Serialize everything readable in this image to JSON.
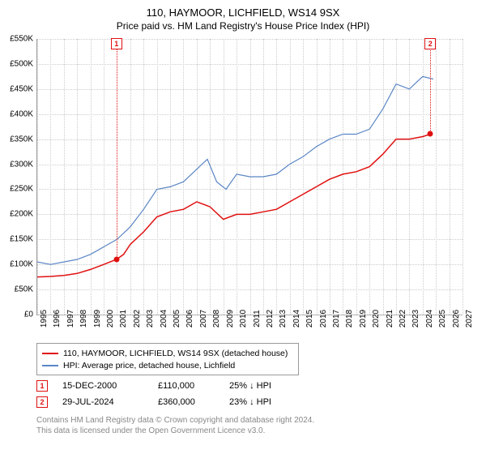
{
  "title_line1": "110, HAYMOOR, LICHFIELD, WS14 9SX",
  "title_line2": "Price paid vs. HM Land Registry's House Price Index (HPI)",
  "chart": {
    "type": "line",
    "background_color": "#ffffff",
    "grid_color": "#cccccc",
    "axis_color": "#999999",
    "xlim": [
      1995,
      2027
    ],
    "ylim": [
      0,
      550000
    ],
    "ytick_step": 50000,
    "ytick_labels": [
      "£0",
      "£50K",
      "£100K",
      "£150K",
      "£200K",
      "£250K",
      "£300K",
      "£350K",
      "£400K",
      "£450K",
      "£500K",
      "£550K"
    ],
    "xtick_step": 1,
    "xtick_labels": [
      "1995",
      "1996",
      "1997",
      "1998",
      "1999",
      "2000",
      "2001",
      "2002",
      "2003",
      "2004",
      "2005",
      "2006",
      "2007",
      "2008",
      "2009",
      "2010",
      "2011",
      "2012",
      "2013",
      "2014",
      "2015",
      "2016",
      "2017",
      "2018",
      "2019",
      "2020",
      "2021",
      "2022",
      "2023",
      "2024",
      "2025",
      "2026",
      "2027"
    ],
    "title_fontsize": 13,
    "subtitle_fontsize": 12,
    "tick_fontsize": 10,
    "series": [
      {
        "name": "price_paid",
        "color": "#e01010",
        "line_width": 1.5,
        "x": [
          1995.0,
          1996.0,
          1997.0,
          1998.0,
          1999.0,
          2000.0,
          2000.96,
          2001.5,
          2002.0,
          2003.0,
          2004.0,
          2005.0,
          2006.0,
          2007.0,
          2008.0,
          2009.0,
          2010.0,
          2011.0,
          2012.0,
          2013.0,
          2014.0,
          2015.0,
          2016.0,
          2017.0,
          2018.0,
          2019.0,
          2020.0,
          2021.0,
          2022.0,
          2023.0,
          2024.0,
          2024.58
        ],
        "y": [
          75000,
          76000,
          78000,
          82000,
          90000,
          100000,
          110000,
          120000,
          140000,
          165000,
          195000,
          205000,
          210000,
          225000,
          215000,
          190000,
          200000,
          200000,
          205000,
          210000,
          225000,
          240000,
          255000,
          270000,
          280000,
          285000,
          295000,
          320000,
          350000,
          350000,
          355000,
          360000
        ]
      },
      {
        "name": "hpi",
        "color": "#5a86c5",
        "line_width": 1.2,
        "x": [
          1995.0,
          1996.0,
          1997.0,
          1998.0,
          1999.0,
          2000.0,
          2001.0,
          2002.0,
          2003.0,
          2004.0,
          2005.0,
          2006.0,
          2007.0,
          2007.8,
          2008.5,
          2009.2,
          2010.0,
          2011.0,
          2012.0,
          2013.0,
          2014.0,
          2015.0,
          2016.0,
          2017.0,
          2018.0,
          2019.0,
          2020.0,
          2021.0,
          2022.0,
          2023.0,
          2024.0,
          2024.8
        ],
        "y": [
          105000,
          100000,
          105000,
          110000,
          120000,
          135000,
          150000,
          175000,
          210000,
          250000,
          255000,
          265000,
          290000,
          310000,
          265000,
          250000,
          280000,
          275000,
          275000,
          280000,
          300000,
          315000,
          335000,
          350000,
          360000,
          360000,
          370000,
          410000,
          460000,
          450000,
          475000,
          470000
        ]
      }
    ],
    "markers": [
      {
        "num": "1",
        "x": 2000.96,
        "y": 110000,
        "color": "#e01010"
      },
      {
        "num": "2",
        "x": 2024.58,
        "y": 360000,
        "color": "#e01010"
      }
    ]
  },
  "legend": {
    "items": [
      {
        "color": "#e01010",
        "label": "110, HAYMOOR, LICHFIELD, WS14 9SX (detached house)"
      },
      {
        "color": "#5a86c5",
        "label": "HPI: Average price, detached house, Lichfield"
      }
    ]
  },
  "events": [
    {
      "num": "1",
      "color": "#e01010",
      "date": "15-DEC-2000",
      "price": "£110,000",
      "pct": "25% ↓ HPI"
    },
    {
      "num": "2",
      "color": "#e01010",
      "date": "29-JUL-2024",
      "price": "£360,000",
      "pct": "23% ↓ HPI"
    }
  ],
  "attribution_line1": "Contains HM Land Registry data © Crown copyright and database right 2024.",
  "attribution_line2": "This data is licensed under the Open Government Licence v3.0."
}
